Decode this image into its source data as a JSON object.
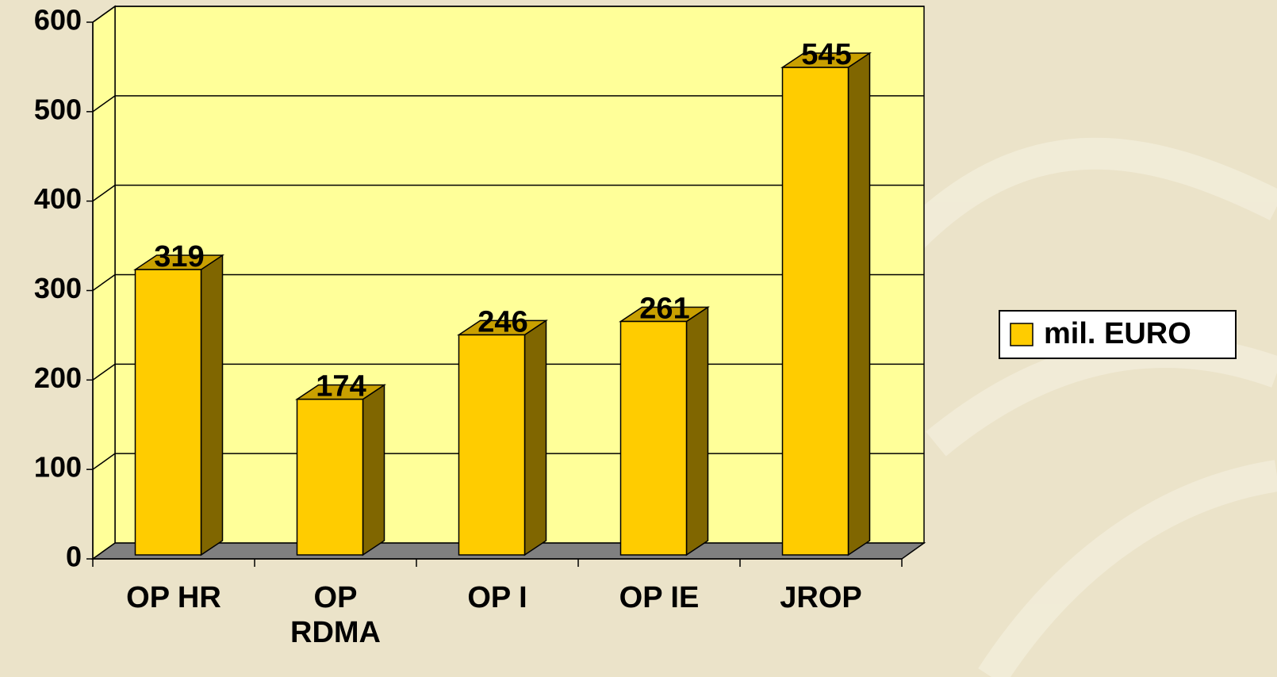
{
  "chart_data": {
    "type": "bar",
    "categories": [
      "OP HR",
      "OP RDMA",
      "OP I",
      "OP IE",
      "JROP"
    ],
    "series": [
      {
        "name": "mil. EURO",
        "color": "#ffcc00",
        "values": [
          319,
          174,
          246,
          261,
          545
        ]
      }
    ],
    "ylim": [
      0,
      600
    ],
    "yticks": [
      0,
      100,
      200,
      300,
      400,
      500,
      600
    ],
    "grid": true,
    "legend": "right"
  }
}
